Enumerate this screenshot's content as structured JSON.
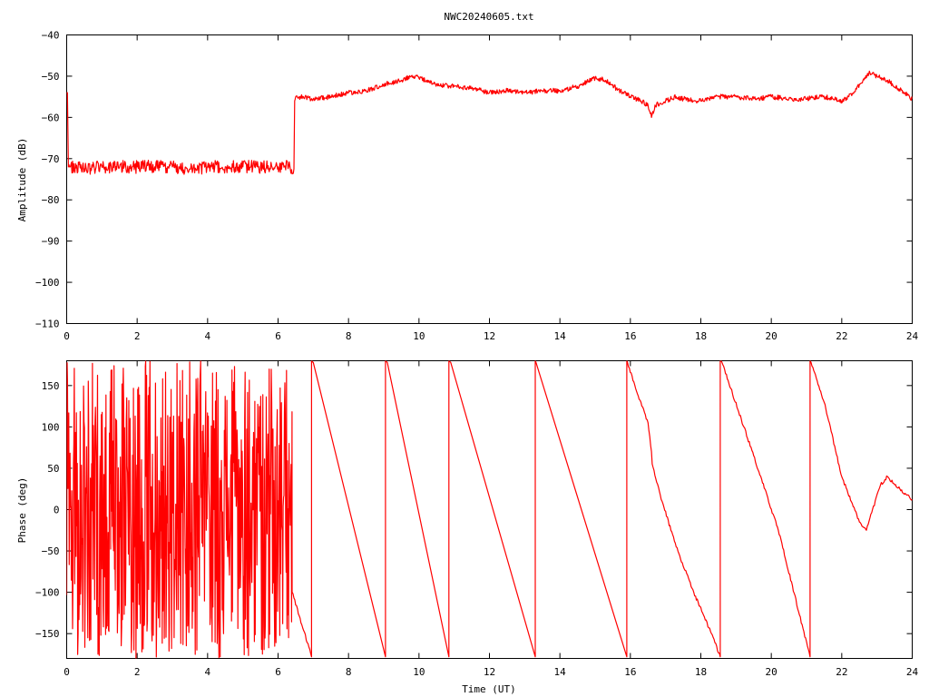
{
  "page": {
    "title": "NWC20240605.txt",
    "trace_color": "#ff0000"
  },
  "chart_data": [
    {
      "type": "line",
      "name": "amplitude",
      "title": "NWC20240605.txt",
      "xlabel": "",
      "ylabel": "Amplitude (dB)",
      "xlim": [
        0,
        24
      ],
      "ylim": [
        -110,
        -40
      ],
      "xticks": [
        0,
        2,
        4,
        6,
        8,
        10,
        12,
        14,
        16,
        18,
        20,
        22,
        24
      ],
      "yticks": [
        -40,
        -50,
        -60,
        -70,
        -80,
        -90,
        -100,
        -110
      ],
      "grid": false,
      "series": [
        {
          "color": "#ff0000",
          "x": [
            0,
            0.02,
            0.05,
            0.08,
            0.1,
            0.5,
            1,
            1.5,
            2,
            2.5,
            3,
            3.5,
            4,
            4.5,
            5,
            5.5,
            6,
            6.3,
            6.45,
            6.47,
            6.5,
            6.6,
            7,
            7.5,
            8,
            8.5,
            9,
            9.5,
            9.8,
            10,
            10.5,
            11,
            11.5,
            12,
            12.5,
            13,
            13.5,
            14,
            14.5,
            15,
            15.3,
            15.6,
            16,
            16.3,
            16.5,
            16.6,
            16.7,
            17,
            17.3,
            17.5,
            17.8,
            18,
            18.5,
            19,
            19.5,
            20,
            20.5,
            21,
            21.5,
            22,
            22.2,
            22.5,
            22.8,
            23,
            23.3,
            23.6,
            24
          ],
          "y": [
            -54,
            -54,
            -72,
            -72,
            -72,
            -72.5,
            -72,
            -72,
            -72,
            -72,
            -72,
            -72.5,
            -72,
            -72,
            -72,
            -72,
            -72,
            -72,
            -72.5,
            -56,
            -55,
            -55,
            -55.5,
            -55,
            -54,
            -53.5,
            -52,
            -51,
            -49.8,
            -50.5,
            -52,
            -52.5,
            -53,
            -54,
            -53.5,
            -54,
            -53.5,
            -53.5,
            -52.5,
            -50.5,
            -51,
            -53,
            -55,
            -56,
            -57,
            -60,
            -57,
            -56,
            -55,
            -55.5,
            -56,
            -56,
            -55,
            -55,
            -55.5,
            -55,
            -55.5,
            -55.5,
            -55,
            -56,
            -55,
            -52,
            -49.2,
            -50,
            -51,
            -53,
            -55.5
          ]
        }
      ]
    },
    {
      "type": "line",
      "name": "phase",
      "title": "",
      "xlabel": "Time (UT)",
      "ylabel": "Phase (deg)",
      "xlim": [
        0,
        24
      ],
      "ylim": [
        -180,
        180
      ],
      "xticks": [
        0,
        2,
        4,
        6,
        8,
        10,
        12,
        14,
        16,
        18,
        20,
        22,
        24
      ],
      "yticks": [
        150,
        100,
        50,
        0,
        -50,
        -100,
        -150
      ],
      "grid": false,
      "series": [
        {
          "color": "#ff0000",
          "noisy_until": 6.4,
          "x": [
            6.4,
            6.95,
            6.95,
            7.0,
            9.05,
            9.05,
            9.1,
            10.85,
            10.85,
            10.9,
            13.3,
            13.3,
            13.32,
            15.9,
            15.9,
            15.92,
            16.2,
            16.5,
            16.6,
            16.62,
            16.9,
            17.3,
            17.8,
            18.3,
            18.55,
            18.55,
            18.6,
            19.5,
            20.2,
            21.1,
            21.1,
            21.13,
            21.5,
            22.0,
            22.5,
            22.7,
            22.8,
            23.1,
            23.3,
            23.5,
            24
          ],
          "y": [
            -100,
            -178,
            180,
            178,
            -178,
            180,
            178,
            -178,
            180,
            178,
            -178,
            180,
            178,
            -178,
            180,
            178,
            140,
            105,
            70,
            55,
            10,
            -45,
            -100,
            -150,
            -178,
            180,
            178,
            65,
            -25,
            -178,
            180,
            178,
            130,
            40,
            -15,
            -25,
            -10,
            30,
            40,
            30,
            12
          ]
        }
      ]
    }
  ]
}
